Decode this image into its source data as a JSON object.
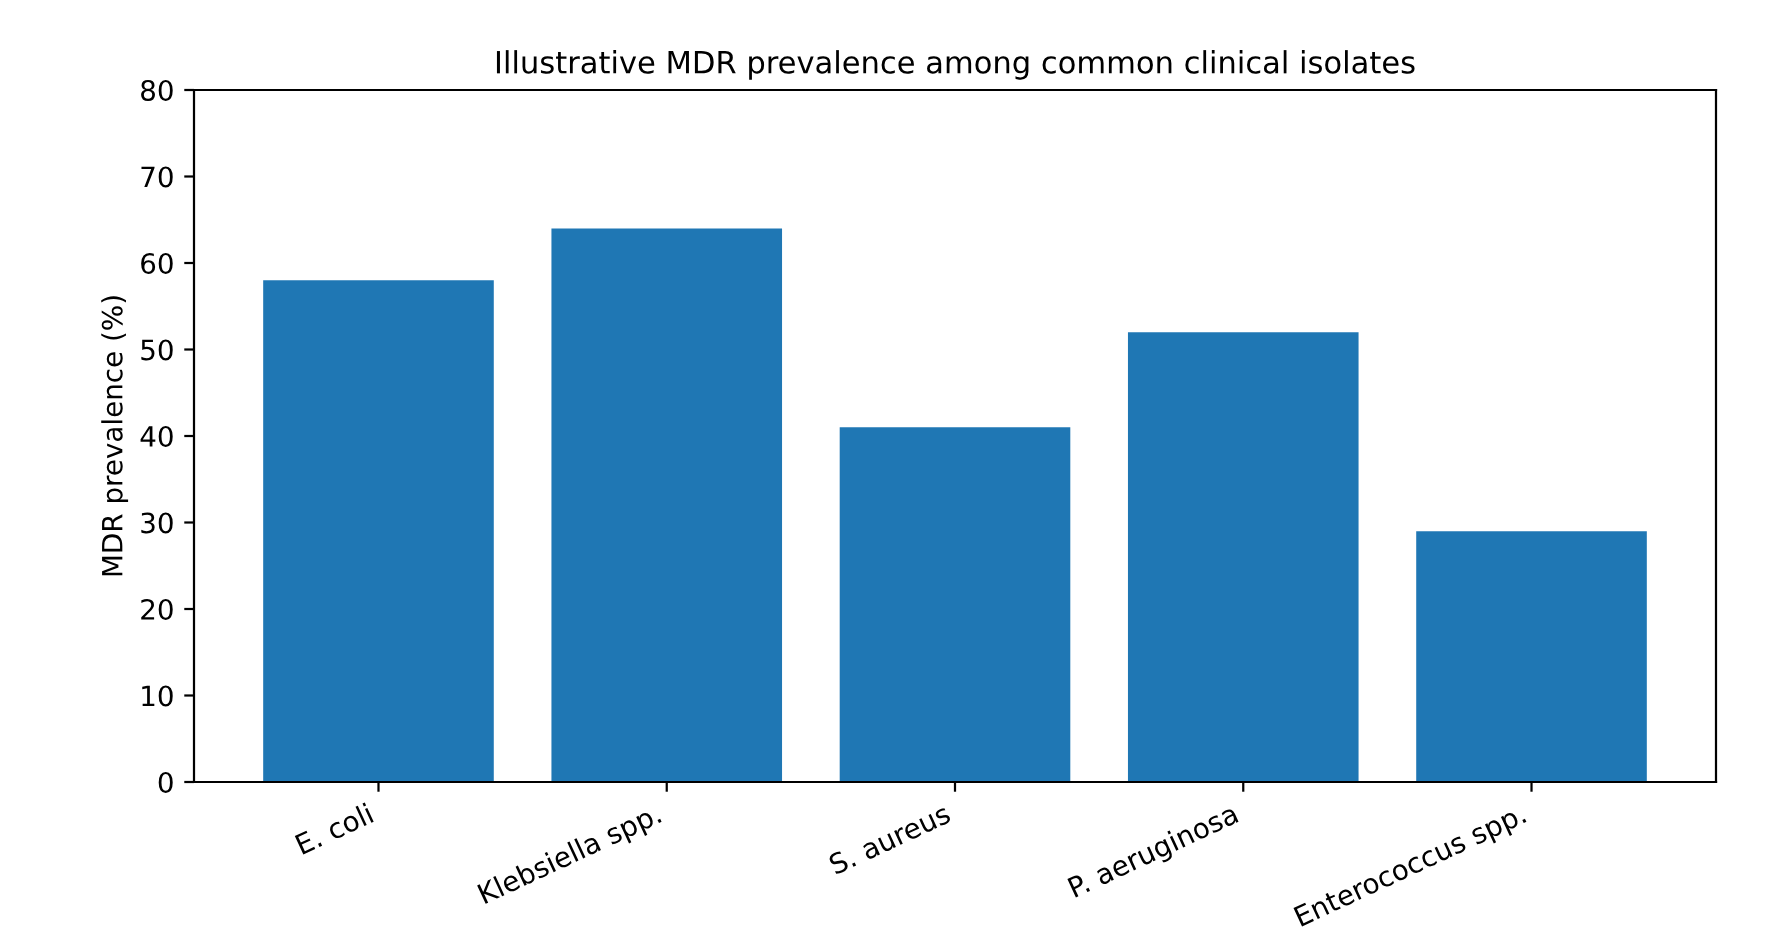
{
  "chart_data": {
    "type": "bar",
    "title": "Illustrative MDR prevalence among common clinical isolates",
    "ylabel": "MDR prevalence (%)",
    "categories": [
      "E. coli",
      "Klebsiella spp.",
      "S. aureus",
      "P. aeruginosa",
      "Enterococcus spp."
    ],
    "values": [
      58,
      64,
      41,
      52,
      29
    ],
    "color": "#1f77b4",
    "ylim": [
      0,
      80
    ],
    "yticks": [
      0,
      10,
      20,
      30,
      40,
      50,
      60,
      70,
      80
    ],
    "grid": false
  }
}
